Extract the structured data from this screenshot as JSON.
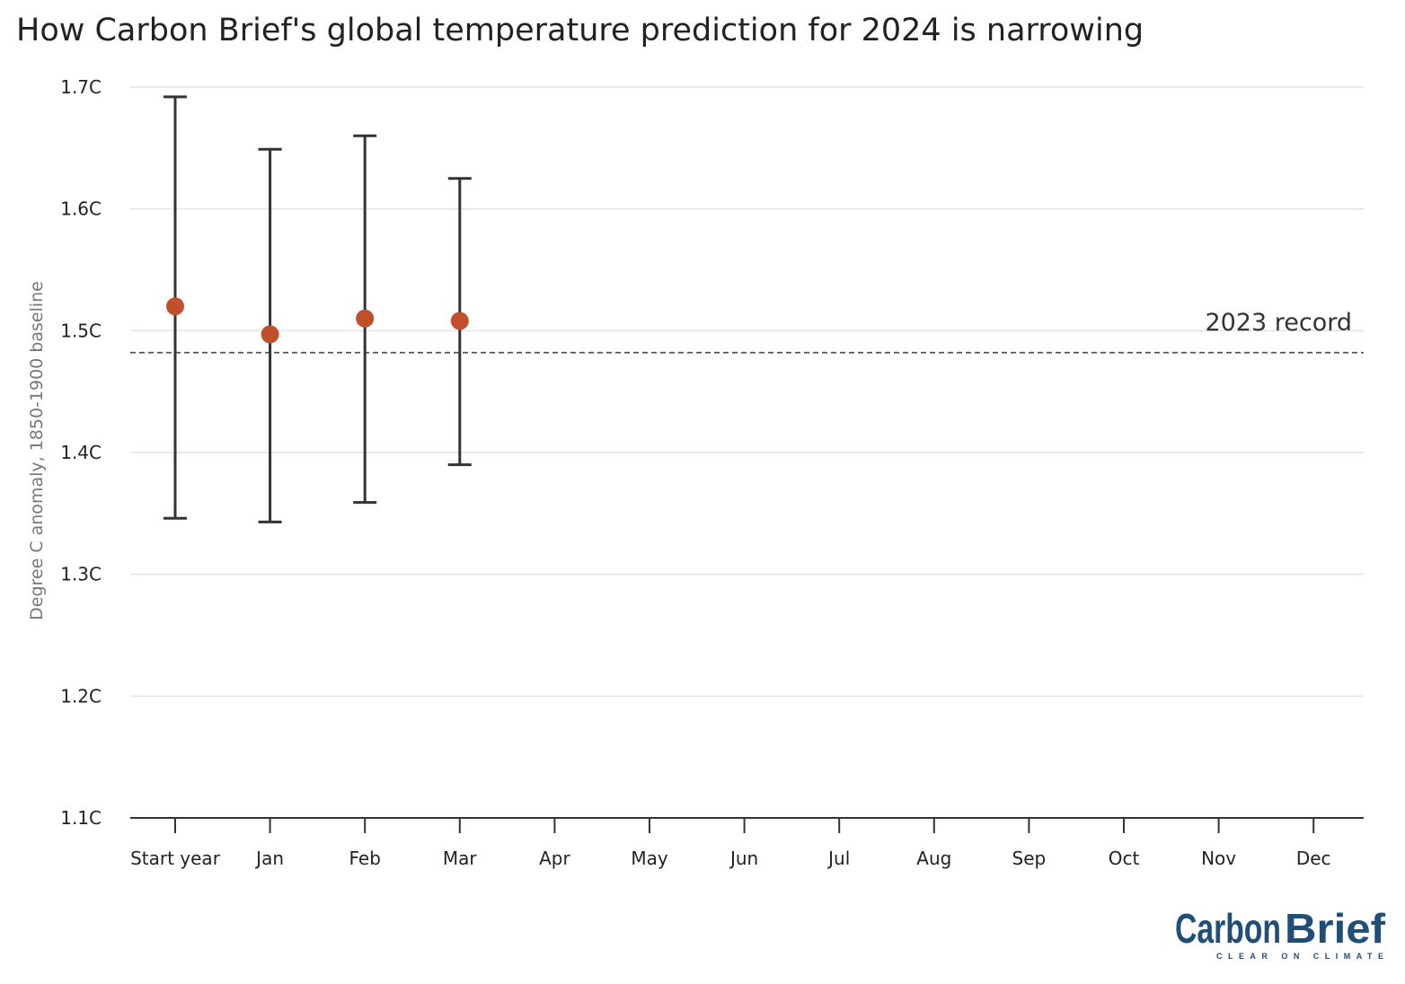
{
  "title": "How Carbon Brief's global temperature prediction for 2024 is narrowing",
  "chart_data": {
    "type": "scatter",
    "title": "How Carbon Brief's global temperature prediction for 2024 is narrowing",
    "xlabel": "",
    "ylabel": "Degree C anomaly, 1850-1900 baseline",
    "categories": [
      "Start year",
      "Jan",
      "Feb",
      "Mar",
      "Apr",
      "May",
      "Jun",
      "Jul",
      "Aug",
      "Sep",
      "Oct",
      "Nov",
      "Dec"
    ],
    "ylim": [
      1.1,
      1.7
    ],
    "yticks": [
      1.1,
      1.2,
      1.3,
      1.4,
      1.5,
      1.6,
      1.7
    ],
    "ytick_labels": [
      "1.1C",
      "1.2C",
      "1.3C",
      "1.4C",
      "1.5C",
      "1.6C",
      "1.7C"
    ],
    "grid": true,
    "series": [
      {
        "values": [
          1.52,
          1.497,
          1.51,
          1.508
        ],
        "lower": [
          1.346,
          1.343,
          1.359,
          1.39
        ],
        "upper": [
          1.692,
          1.649,
          1.66,
          1.625
        ],
        "color": "#c0502c",
        "errorbar_color": "#333333"
      }
    ],
    "reference_line": {
      "label": "2023 record",
      "value": 1.482,
      "style": "dashed",
      "color": "#555555"
    }
  },
  "logo": {
    "name": "CarbonBrief",
    "word1": "Carbon",
    "word2": "Brief",
    "tagline": "CLEAR ON CLIMATE",
    "color": "#1f4e79"
  }
}
